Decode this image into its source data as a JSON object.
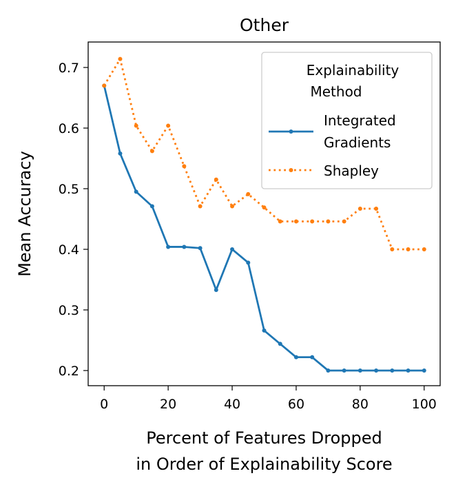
{
  "chart_data": {
    "type": "line",
    "title": "Other",
    "xlabel_lines": [
      "Percent of Features Dropped",
      "in Order of Explainability Score"
    ],
    "ylabel": "Mean Accuracy",
    "xlim": [
      -5,
      105
    ],
    "ylim": [
      0.175,
      0.742
    ],
    "xticks": [
      0,
      20,
      40,
      60,
      80,
      100
    ],
    "yticks": [
      0.2,
      0.3,
      0.4,
      0.5,
      0.6,
      0.7
    ],
    "x": [
      0,
      5,
      10,
      15,
      20,
      25,
      30,
      35,
      40,
      45,
      50,
      55,
      60,
      65,
      70,
      75,
      80,
      85,
      90,
      95,
      100
    ],
    "series": [
      {
        "name": "Integrated Gradients",
        "color": "#1f77b4",
        "style": "solid",
        "values": [
          0.67,
          0.558,
          0.495,
          0.471,
          0.404,
          0.404,
          0.402,
          0.333,
          0.4,
          0.378,
          0.266,
          0.244,
          0.222,
          0.222,
          0.2,
          0.2,
          0.2,
          0.2,
          0.2,
          0.2,
          0.2
        ]
      },
      {
        "name": "Shapley",
        "color": "#ff7f0e",
        "style": "dotted",
        "values": [
          0.67,
          0.714,
          0.604,
          0.562,
          0.604,
          0.537,
          0.471,
          0.515,
          0.471,
          0.491,
          0.469,
          0.446,
          0.446,
          0.446,
          0.446,
          0.446,
          0.467,
          0.467,
          0.4,
          0.4,
          0.4
        ]
      }
    ],
    "legend": {
      "title_lines": [
        "Explainability",
        "Method"
      ],
      "entries": [
        {
          "label_lines": [
            "Integrated",
            "Gradients"
          ]
        },
        {
          "label_lines": [
            "Shapley"
          ]
        }
      ],
      "position": "top-right"
    }
  }
}
